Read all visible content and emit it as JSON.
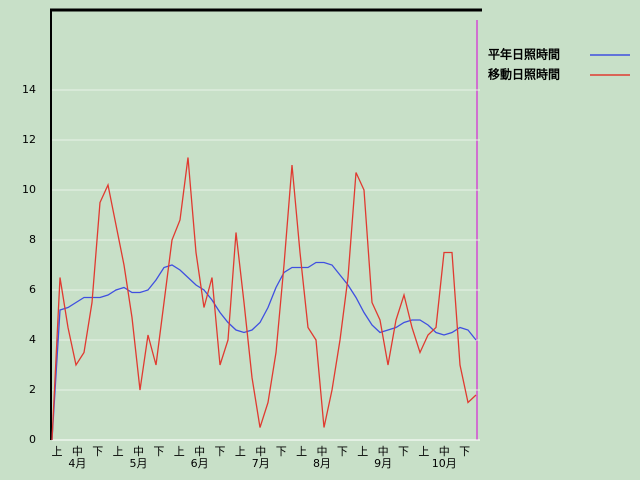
{
  "chart_data": {
    "type": "line",
    "dekads": [
      "上",
      "中",
      "下",
      "上",
      "中",
      "下",
      "上",
      "中",
      "下",
      "上",
      "中",
      "下",
      "上",
      "中",
      "下",
      "上",
      "中",
      "下",
      "上",
      "中",
      "下"
    ],
    "months": [
      "4月",
      "5月",
      "6月",
      "7月",
      "8月",
      "9月",
      "10月"
    ],
    "x": [
      0,
      4,
      8,
      12,
      16,
      20,
      24,
      28,
      32,
      36,
      40,
      44,
      48,
      52,
      56,
      60,
      64,
      68,
      72,
      76,
      80,
      84,
      88,
      92,
      96,
      100,
      104,
      108,
      112,
      116,
      120,
      124,
      128,
      132,
      136,
      140,
      144,
      148,
      152,
      156,
      160,
      164,
      168,
      172,
      176,
      180,
      184,
      188,
      192,
      196,
      200,
      204,
      208,
      212
    ],
    "xlim": [
      0,
      214
    ],
    "ylim": [
      0,
      17.2
    ],
    "yticks": [
      0,
      2,
      4,
      6,
      8,
      10,
      12,
      14
    ],
    "grid": true,
    "series": [
      {
        "name": "平年日照時間",
        "color": "#3f4fe0",
        "values": [
          0,
          5.2,
          5.3,
          5.5,
          5.7,
          5.7,
          5.7,
          5.8,
          6.0,
          6.1,
          5.9,
          5.9,
          6.0,
          6.4,
          6.9,
          7.0,
          6.8,
          6.5,
          6.2,
          6.0,
          5.6,
          5.1,
          4.7,
          4.4,
          4.3,
          4.4,
          4.7,
          5.3,
          6.1,
          6.7,
          6.9,
          6.9,
          6.9,
          7.1,
          7.1,
          7.0,
          6.6,
          6.2,
          5.7,
          5.1,
          4.6,
          4.3,
          4.4,
          4.5,
          4.7,
          4.8,
          4.8,
          4.6,
          4.3,
          4.2,
          4.3,
          4.5,
          4.4,
          4.0
        ]
      },
      {
        "name": "移動日照時間",
        "color": "#e03a30",
        "values": [
          0,
          6.5,
          4.5,
          3.0,
          3.5,
          5.5,
          9.5,
          10.2,
          8.6,
          7.0,
          4.9,
          2.0,
          4.2,
          3.0,
          5.5,
          8.0,
          8.8,
          11.3,
          7.5,
          5.3,
          6.5,
          3.0,
          4.0,
          8.3,
          5.5,
          2.5,
          0.5,
          1.5,
          3.5,
          7.0,
          11.0,
          7.5,
          4.5,
          4.0,
          0.5,
          2.0,
          4.0,
          6.5,
          10.7,
          10.0,
          5.5,
          4.8,
          3.0,
          4.8,
          5.8,
          4.5,
          3.5,
          4.2,
          4.5,
          7.5,
          7.5,
          3.0,
          1.5,
          1.8
        ]
      }
    ]
  }
}
